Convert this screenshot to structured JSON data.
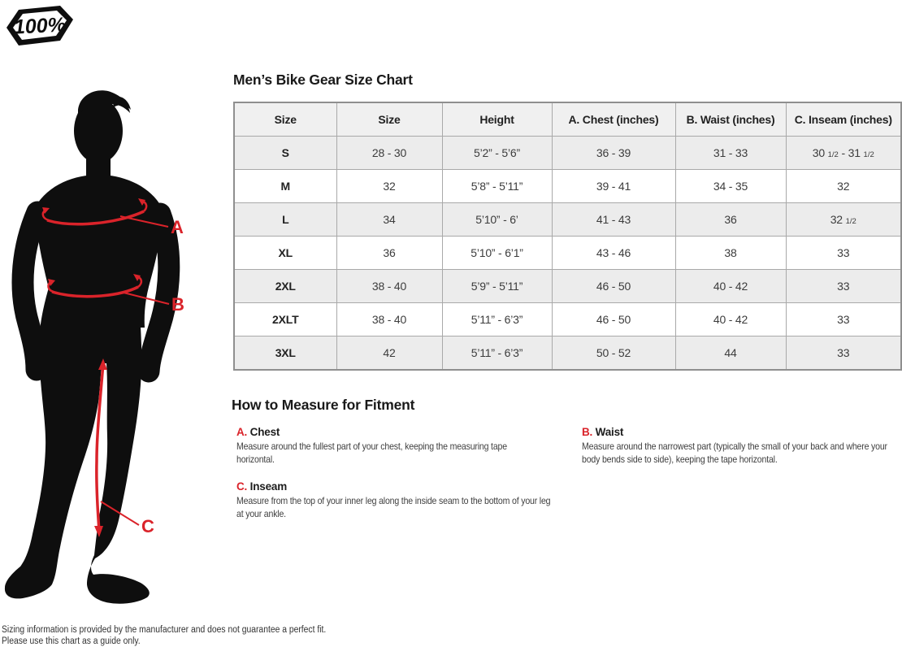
{
  "brand": {
    "logo_text": "100%"
  },
  "size_chart": {
    "title": "Men’s Bike Gear Size Chart",
    "columns": [
      "Size",
      "Size",
      "Height",
      "A. Chest (inches)",
      "B. Waist (inches)",
      "C. Inseam (inches)"
    ],
    "rows": [
      [
        "S",
        "28 - 30",
        "5’2” - 5’6”",
        "36 - 39",
        "31 - 33",
        "30 1/2 - 31 1/2"
      ],
      [
        "M",
        "32",
        "5’8” - 5’11”",
        "39 - 41",
        "34 - 35",
        "32"
      ],
      [
        "L",
        "34",
        "5’10” - 6’",
        "41 - 43",
        "36",
        "32 1/2"
      ],
      [
        "XL",
        "36",
        "5’10” - 6’1”",
        "43 - 46",
        "38",
        "33"
      ],
      [
        "2XL",
        "38 - 40",
        "5’9” - 5’11”",
        "46 - 50",
        "40 - 42",
        "33"
      ],
      [
        "2XLT",
        "38 - 40",
        "5’11” - 6’3”",
        "46 - 50",
        "40 - 42",
        "33"
      ],
      [
        "3XL",
        "42",
        "5’11” - 6’3”",
        "50 - 52",
        "44",
        "33"
      ]
    ]
  },
  "measure_section": {
    "title": "How to Measure for Fitment",
    "items": [
      {
        "letter": "A.",
        "name": "Chest",
        "description": "Measure around the fullest part of your chest, keeping the measuring tape horizontal."
      },
      {
        "letter": "B.",
        "name": "Waist",
        "description": "Measure around the narrowest part (typically the small of your back and where your body bends side to side), keeping the tape horizontal."
      },
      {
        "letter": "C.",
        "name": "Inseam",
        "description": "Measure from the top of your inner leg along the inside seam to the bottom of your leg at your ankle."
      }
    ]
  },
  "figure": {
    "labels": [
      "A",
      "B",
      "C"
    ]
  },
  "footer": {
    "line1": "Sizing information is provided by the manufacturer and does not guarantee a perfect fit.",
    "line2": "Please use this chart as a guide only."
  },
  "colors": {
    "accent_red": "#da232a",
    "silhouette_black": "#0e0e0e",
    "table_header_bg": "#f0f0f0",
    "table_alt_row_bg": "#ececec",
    "table_border": "#a9a9a9",
    "table_outer_border": "#8f8f8f"
  }
}
